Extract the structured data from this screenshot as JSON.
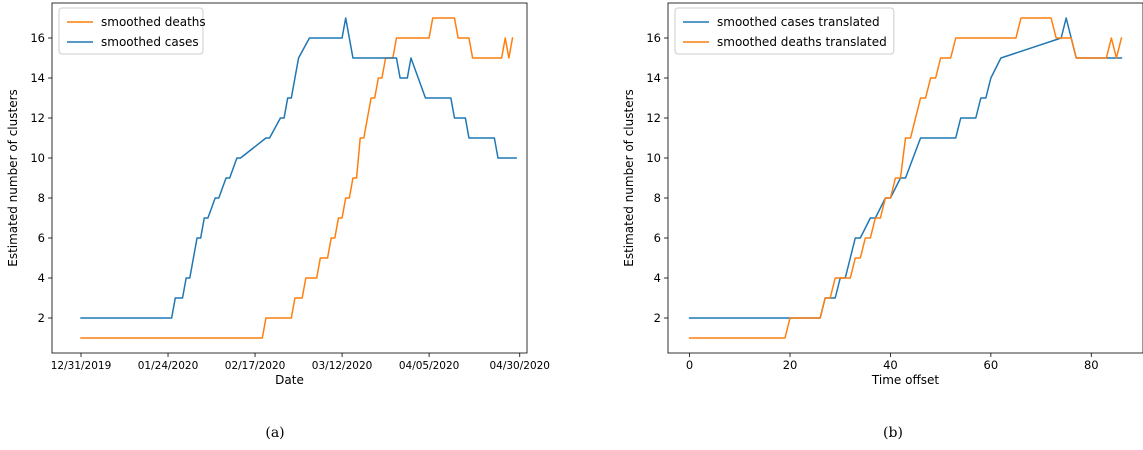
{
  "chart_data": [
    {
      "type": "line",
      "panel_label": "(a)",
      "xlabel": "Date",
      "ylabel": "Estimated number of clusters",
      "x_scale": "date",
      "xlim": [
        "2019-12-23",
        "2020-05-02"
      ],
      "ylim": [
        0.25,
        17.75
      ],
      "x_ticks": [
        "2019-12-31",
        "2020-01-24",
        "2020-02-17",
        "2020-03-12",
        "2020-04-05",
        "2020-04-30"
      ],
      "x_tick_labels": [
        "12/31/2019",
        "01/24/2020",
        "02/17/2020",
        "03/12/2020",
        "04/05/2020",
        "04/30/2020"
      ],
      "y_ticks": [
        2,
        4,
        6,
        8,
        10,
        12,
        14,
        16
      ],
      "y_tick_labels": [
        "2",
        "4",
        "6",
        "8",
        "10",
        "12",
        "14",
        "16"
      ],
      "grid": false,
      "legend_position": "top-left",
      "colors": {
        "smoothed deaths": "#ff7f0e",
        "smoothed cases": "#1f77b4"
      },
      "series": [
        {
          "name": "smoothed deaths",
          "x": [
            "2019-12-31",
            "2020-02-19",
            "2020-02-20",
            "2020-02-27",
            "2020-02-28",
            "2020-03-01",
            "2020-03-02",
            "2020-03-05",
            "2020-03-06",
            "2020-03-08",
            "2020-03-09",
            "2020-03-10",
            "2020-03-11",
            "2020-03-12",
            "2020-03-13",
            "2020-03-14",
            "2020-03-15",
            "2020-03-16",
            "2020-03-17",
            "2020-03-18",
            "2020-03-20",
            "2020-03-21",
            "2020-03-22",
            "2020-03-23",
            "2020-03-24",
            "2020-03-26",
            "2020-03-27",
            "2020-03-28",
            "2020-03-29",
            "2020-04-05",
            "2020-04-06",
            "2020-04-12",
            "2020-04-13",
            "2020-04-16",
            "2020-04-17",
            "2020-04-25",
            "2020-04-26",
            "2020-04-27",
            "2020-04-28"
          ],
          "y": [
            1,
            1,
            2,
            2,
            3,
            3,
            4,
            4,
            5,
            5,
            6,
            6,
            7,
            7,
            8,
            8,
            9,
            9,
            11,
            11,
            13,
            13,
            14,
            14,
            15,
            15,
            16,
            16,
            16,
            16,
            17,
            17,
            16,
            16,
            15,
            15,
            16,
            15,
            16
          ]
        },
        {
          "name": "smoothed cases",
          "x": [
            "2019-12-31",
            "2020-01-25",
            "2020-01-26",
            "2020-01-28",
            "2020-01-29",
            "2020-01-30",
            "2020-01-31",
            "2020-02-01",
            "2020-02-02",
            "2020-02-03",
            "2020-02-04",
            "2020-02-06",
            "2020-02-07",
            "2020-02-09",
            "2020-02-10",
            "2020-02-12",
            "2020-02-13",
            "2020-02-20",
            "2020-02-21",
            "2020-02-24",
            "2020-02-25",
            "2020-02-26",
            "2020-02-27",
            "2020-02-28",
            "2020-02-29",
            "2020-03-03",
            "2020-03-12",
            "2020-03-13",
            "2020-03-14",
            "2020-03-15",
            "2020-03-27",
            "2020-03-28",
            "2020-03-30",
            "2020-03-31",
            "2020-04-02",
            "2020-04-04",
            "2020-04-11",
            "2020-04-12",
            "2020-04-15",
            "2020-04-16",
            "2020-04-23",
            "2020-04-24",
            "2020-04-29"
          ],
          "y": [
            2,
            2,
            3,
            3,
            4,
            4,
            5,
            6,
            6,
            7,
            7,
            8,
            8,
            9,
            9,
            10,
            10,
            11,
            11,
            12,
            12,
            13,
            13,
            14,
            15,
            16,
            16,
            17,
            16,
            15,
            15,
            14,
            14,
            15,
            14,
            13,
            13,
            12,
            12,
            11,
            11,
            10,
            10
          ]
        }
      ]
    },
    {
      "type": "line",
      "panel_label": "(b)",
      "xlabel": "Time offset",
      "ylabel": "Estimated number of clusters",
      "xlim": [
        -4.3,
        90.3
      ],
      "ylim": [
        0.25,
        17.75
      ],
      "x_ticks": [
        0,
        20,
        40,
        60,
        80
      ],
      "x_tick_labels": [
        "0",
        "20",
        "40",
        "60",
        "80"
      ],
      "y_ticks": [
        2,
        4,
        6,
        8,
        10,
        12,
        14,
        16
      ],
      "y_tick_labels": [
        "2",
        "4",
        "6",
        "8",
        "10",
        "12",
        "14",
        "16"
      ],
      "grid": false,
      "legend_position": "top-left",
      "colors": {
        "smoothed cases translated": "#1f77b4",
        "smoothed deaths translated": "#ff7f0e"
      },
      "series": [
        {
          "name": "smoothed cases translated",
          "x": [
            0,
            19,
            20,
            26,
            27,
            29,
            30,
            31,
            32,
            33,
            34,
            36,
            37,
            39,
            40,
            42,
            43,
            46,
            47,
            53,
            54,
            57,
            58,
            59,
            60,
            62,
            74,
            75,
            76,
            77,
            86
          ],
          "y": [
            2,
            2,
            2,
            2,
            3,
            3,
            4,
            4,
            5,
            6,
            6,
            7,
            7,
            8,
            8,
            9,
            9,
            11,
            11,
            11,
            12,
            12,
            13,
            13,
            14,
            15,
            16,
            17,
            16,
            15,
            15
          ]
        },
        {
          "name": "smoothed deaths translated",
          "x": [
            0,
            19,
            20,
            26,
            27,
            28,
            29,
            32,
            33,
            34,
            35,
            36,
            37,
            38,
            39,
            40,
            41,
            42,
            43,
            44,
            46,
            47,
            48,
            49,
            50,
            52,
            53,
            54,
            55,
            57,
            58,
            65,
            66,
            72,
            73,
            76,
            77,
            83,
            84,
            85,
            86
          ],
          "y": [
            1,
            1,
            2,
            2,
            3,
            3,
            4,
            4,
            5,
            5,
            6,
            6,
            7,
            7,
            8,
            8,
            9,
            9,
            11,
            11,
            13,
            13,
            14,
            14,
            15,
            15,
            16,
            16,
            16,
            16,
            16,
            16,
            17,
            17,
            16,
            16,
            15,
            15,
            16,
            15,
            16
          ]
        }
      ]
    }
  ]
}
